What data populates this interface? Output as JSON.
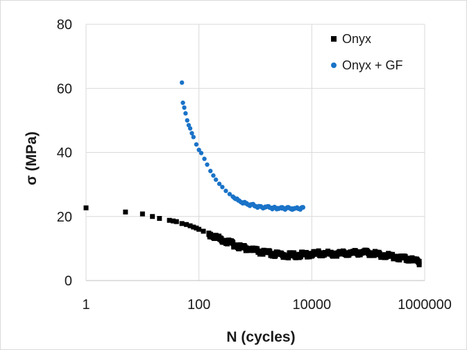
{
  "chart_data": {
    "type": "scatter",
    "title": "",
    "xlabel": "N (cycles)",
    "ylabel": "σ (MPa)",
    "x_scale": "log",
    "xlim": [
      1,
      1000000
    ],
    "ylim": [
      0,
      80
    ],
    "x_ticks": [
      {
        "value": 1,
        "label": "1"
      },
      {
        "value": 100,
        "label": "100"
      },
      {
        "value": 10000,
        "label": "10000"
      },
      {
        "value": 1000000,
        "label": "1000000"
      }
    ],
    "y_ticks": [
      {
        "value": 0,
        "label": "0"
      },
      {
        "value": 20,
        "label": "20"
      },
      {
        "value": 40,
        "label": "40"
      },
      {
        "value": 60,
        "label": "60"
      },
      {
        "value": 80,
        "label": "80"
      }
    ],
    "grid": true,
    "legend_position": "top-right",
    "series": [
      {
        "name": "Onyx",
        "color": "#000000",
        "marker": "square",
        "points": [
          [
            1,
            22.7
          ],
          [
            5,
            21.4
          ],
          [
            10,
            20.8
          ],
          [
            15,
            20.0
          ],
          [
            20,
            19.4
          ],
          [
            30,
            18.8
          ],
          [
            35,
            18.6
          ],
          [
            40,
            18.4
          ],
          [
            50,
            17.8
          ],
          [
            60,
            17.5
          ],
          [
            70,
            17.1
          ],
          [
            80,
            16.7
          ],
          [
            90,
            16.4
          ],
          [
            100,
            16.0
          ],
          [
            120,
            15.4
          ],
          [
            150,
            14.8
          ],
          [
            180,
            14.1
          ],
          [
            200,
            13.7
          ],
          [
            250,
            13.1
          ],
          [
            300,
            12.5
          ],
          [
            350,
            12.0
          ],
          [
            400,
            11.6
          ],
          [
            500,
            11.0
          ],
          [
            600,
            10.6
          ],
          [
            700,
            10.2
          ],
          [
            800,
            10.0
          ],
          [
            1000,
            9.6
          ],
          [
            1200,
            9.2
          ],
          [
            1500,
            8.9
          ],
          [
            1800,
            8.7
          ],
          [
            2000,
            8.5
          ],
          [
            2500,
            8.3
          ],
          [
            3000,
            8.2
          ],
          [
            4000,
            8.1
          ],
          [
            5000,
            8.1
          ],
          [
            6000,
            8.2
          ],
          [
            7000,
            8.3
          ],
          [
            8000,
            8.4
          ],
          [
            10000,
            8.5
          ],
          [
            12000,
            8.6
          ],
          [
            15000,
            8.7
          ],
          [
            20000,
            8.6
          ],
          [
            25000,
            8.6
          ],
          [
            30000,
            8.6
          ],
          [
            40000,
            8.7
          ],
          [
            50000,
            8.8
          ],
          [
            60000,
            8.9
          ],
          [
            70000,
            9.0
          ],
          [
            80000,
            9.0
          ],
          [
            100000,
            8.9
          ],
          [
            120000,
            8.7
          ],
          [
            150000,
            8.4
          ],
          [
            200000,
            8.1
          ],
          [
            250000,
            7.8
          ],
          [
            300000,
            7.6
          ],
          [
            400000,
            7.3
          ],
          [
            500000,
            7.0
          ],
          [
            600000,
            6.7
          ],
          [
            700000,
            6.4
          ],
          [
            800000,
            6.0
          ]
        ]
      },
      {
        "name": "Onyx + GF",
        "color": "#1a73c8",
        "marker": "circle",
        "points": [
          [
            50,
            61.8
          ],
          [
            52,
            55.5
          ],
          [
            55,
            54.0
          ],
          [
            58,
            52.2
          ],
          [
            62,
            50.0
          ],
          [
            66,
            48.5
          ],
          [
            70,
            47.5
          ],
          [
            75,
            46.0
          ],
          [
            80,
            44.8
          ],
          [
            90,
            42.5
          ],
          [
            100,
            40.8
          ],
          [
            110,
            39.8
          ],
          [
            125,
            38.0
          ],
          [
            140,
            36.2
          ],
          [
            160,
            34.2
          ],
          [
            180,
            32.8
          ],
          [
            200,
            31.5
          ],
          [
            230,
            30.2
          ],
          [
            260,
            29.2
          ],
          [
            300,
            28.0
          ],
          [
            350,
            27.0
          ],
          [
            400,
            26.2
          ],
          [
            450,
            25.5
          ],
          [
            500,
            25.0
          ],
          [
            600,
            24.4
          ],
          [
            700,
            24.0
          ],
          [
            800,
            23.7
          ],
          [
            1000,
            23.3
          ],
          [
            1200,
            23.1
          ],
          [
            1500,
            22.9
          ],
          [
            1800,
            22.8
          ],
          [
            2000,
            22.7
          ],
          [
            2500,
            22.6
          ],
          [
            3000,
            22.5
          ],
          [
            3500,
            22.5
          ],
          [
            4000,
            22.6
          ],
          [
            4500,
            22.5
          ],
          [
            5000,
            22.5
          ],
          [
            5500,
            22.7
          ],
          [
            6000,
            22.4
          ],
          [
            6500,
            22.6
          ],
          [
            7000,
            22.8
          ]
        ]
      }
    ]
  }
}
